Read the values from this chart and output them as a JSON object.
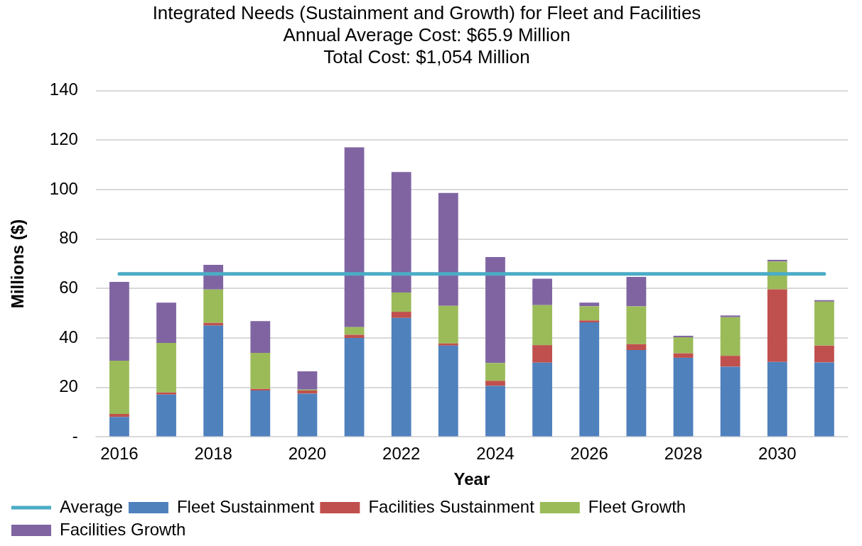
{
  "chart_data": {
    "type": "bar",
    "title": "Integrated Needs (Sustainment and Growth) for Fleet and Facilities",
    "subtitle": "Annual Average Cost: $65.9 Million\nTotal Cost: $1,054 Million",
    "xlabel": "Year",
    "ylabel": "Millions ($)",
    "categories": [
      "2016",
      null,
      "2018",
      null,
      "2020",
      null,
      "2022",
      null,
      "2024",
      null,
      "2026",
      null,
      "2028",
      null,
      "2030",
      null
    ],
    "stacked": true,
    "ylim": [
      0,
      140
    ],
    "yticks": [
      {
        "value": 0,
        "label": "-"
      },
      20,
      40,
      60,
      80,
      100,
      120,
      140
    ],
    "grid": "y",
    "legend": "bottom",
    "series": [
      {
        "name": "Fleet Sustainment",
        "color": "#4f81bd",
        "values": [
          8.1,
          17.1,
          45.0,
          18.8,
          17.5,
          40.0,
          48.1,
          36.9,
          20.6,
          30.0,
          46.3,
          35.1,
          32.0,
          28.4,
          30.3,
          30.1
        ]
      },
      {
        "name": "Facilities Sustainment",
        "color": "#c0504d",
        "values": [
          1.2,
          0.9,
          1.1,
          0.6,
          1.3,
          1.3,
          2.5,
          0.9,
          2.1,
          7.1,
          0.8,
          2.4,
          1.8,
          4.4,
          29.4,
          6.8
        ]
      },
      {
        "name": "Fleet Growth",
        "color": "#9bbb59",
        "values": [
          21.5,
          20.0,
          13.5,
          14.6,
          0.3,
          3.1,
          7.8,
          15.2,
          7.2,
          16.2,
          5.7,
          15.3,
          6.5,
          15.6,
          11.2,
          17.8
        ]
      },
      {
        "name": "Facilities Growth",
        "color": "#8064a2",
        "values": [
          31.9,
          16.3,
          10.0,
          12.8,
          7.4,
          72.7,
          48.7,
          45.6,
          42.8,
          10.7,
          1.5,
          11.9,
          0.6,
          0.7,
          0.7,
          0.6
        ]
      },
      {
        "name": "Average",
        "type": "line",
        "color": "#4bacc6",
        "marker": "none",
        "values": [
          65.9,
          65.9,
          65.9,
          65.9,
          65.9,
          65.9,
          65.9,
          65.9,
          65.9,
          65.9,
          65.9,
          65.9,
          65.9,
          65.9,
          65.9,
          65.9
        ]
      }
    ]
  }
}
